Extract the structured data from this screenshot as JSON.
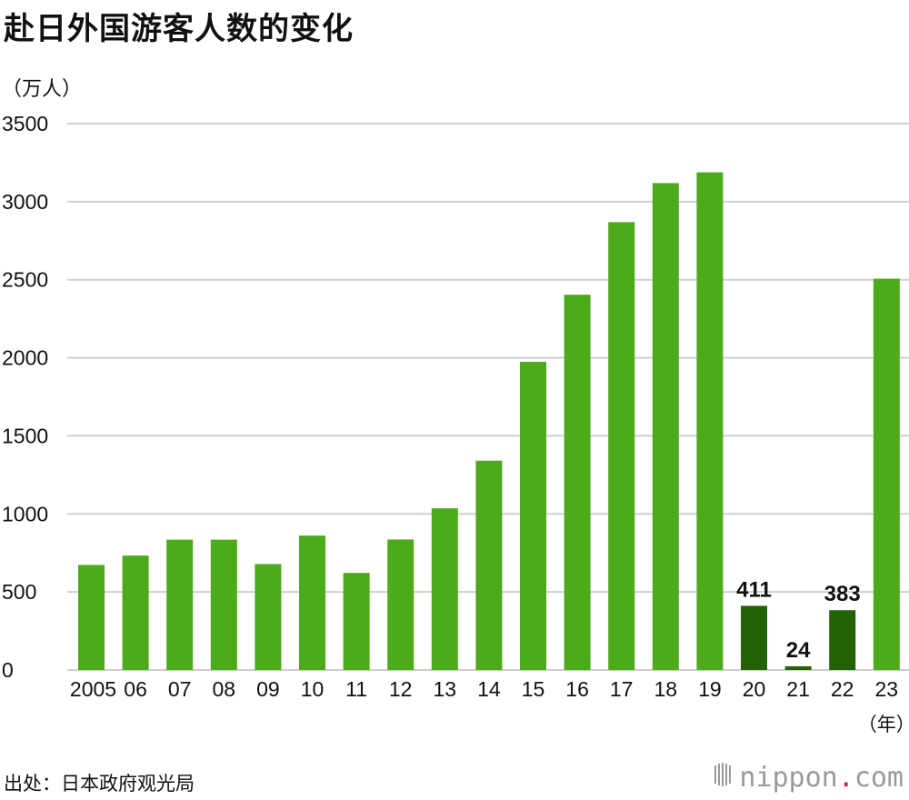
{
  "title": "赴日外国游客人数的变化",
  "unit_label": "（万人）",
  "source": "出处：日本政府观光局",
  "brand": {
    "name": "nippon",
    "dot": ".",
    "tld": "com",
    "mark": "nippon-logo-icon",
    "dot_color": "#d8232a"
  },
  "colors": {
    "bar": "#4caa1b",
    "bar_highlight": "#236205",
    "grid": "#cfcfcf",
    "text": "#111111"
  },
  "chart_data": {
    "type": "bar",
    "title": "赴日外国游客人数的变化",
    "ylabel": "（万人）",
    "xlabel": "（年）",
    "ylim": [
      0,
      3500
    ],
    "yticks": [
      0,
      500,
      1000,
      1500,
      2000,
      2500,
      3000,
      3500
    ],
    "grid": true,
    "categories": [
      "2005",
      "06",
      "07",
      "08",
      "09",
      "10",
      "11",
      "12",
      "13",
      "14",
      "15",
      "16",
      "17",
      "18",
      "19",
      "20",
      "21",
      "22",
      "23"
    ],
    "values": [
      673,
      733,
      835,
      835,
      679,
      861,
      622,
      836,
      1036,
      1341,
      1974,
      2404,
      2869,
      3119,
      3188,
      411,
      24,
      383,
      2507
    ],
    "highlighted": [
      "20",
      "21",
      "22"
    ],
    "data_labels": {
      "20": "411",
      "21": "24",
      "22": "383"
    }
  }
}
